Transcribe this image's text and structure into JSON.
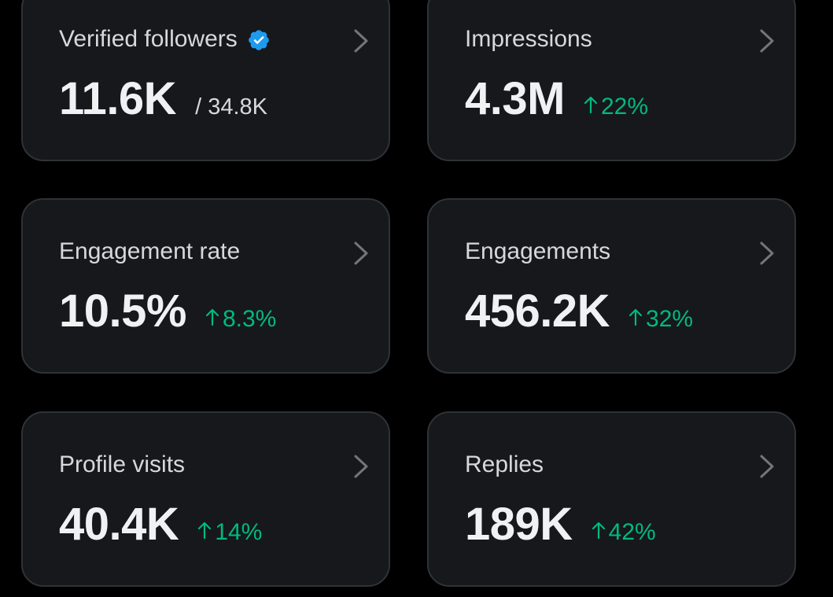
{
  "colors": {
    "background": "#000000",
    "card": "#16181c",
    "card_border": "#2f3336",
    "positive": "#00ba7c",
    "verified": "#1d9bf0",
    "chevron": "#71767b"
  },
  "cards": [
    {
      "title": "Verified followers",
      "icon": "verified-badge-icon",
      "value": "11.6K",
      "secondary": "/ 34.8K"
    },
    {
      "title": "Impressions",
      "value": "4.3M",
      "change": "22%",
      "change_icon": "arrow-up-icon"
    },
    {
      "title": "Engagement rate",
      "value": "10.5%",
      "change": "8.3%",
      "change_icon": "arrow-up-icon"
    },
    {
      "title": "Engagements",
      "value": "456.2K",
      "change": "32%",
      "change_icon": "arrow-up-icon"
    },
    {
      "title": "Profile visits",
      "value": "40.4K",
      "change": "14%",
      "change_icon": "arrow-up-icon"
    },
    {
      "title": "Replies",
      "value": "189K",
      "change": "42%",
      "change_icon": "arrow-up-icon"
    }
  ]
}
